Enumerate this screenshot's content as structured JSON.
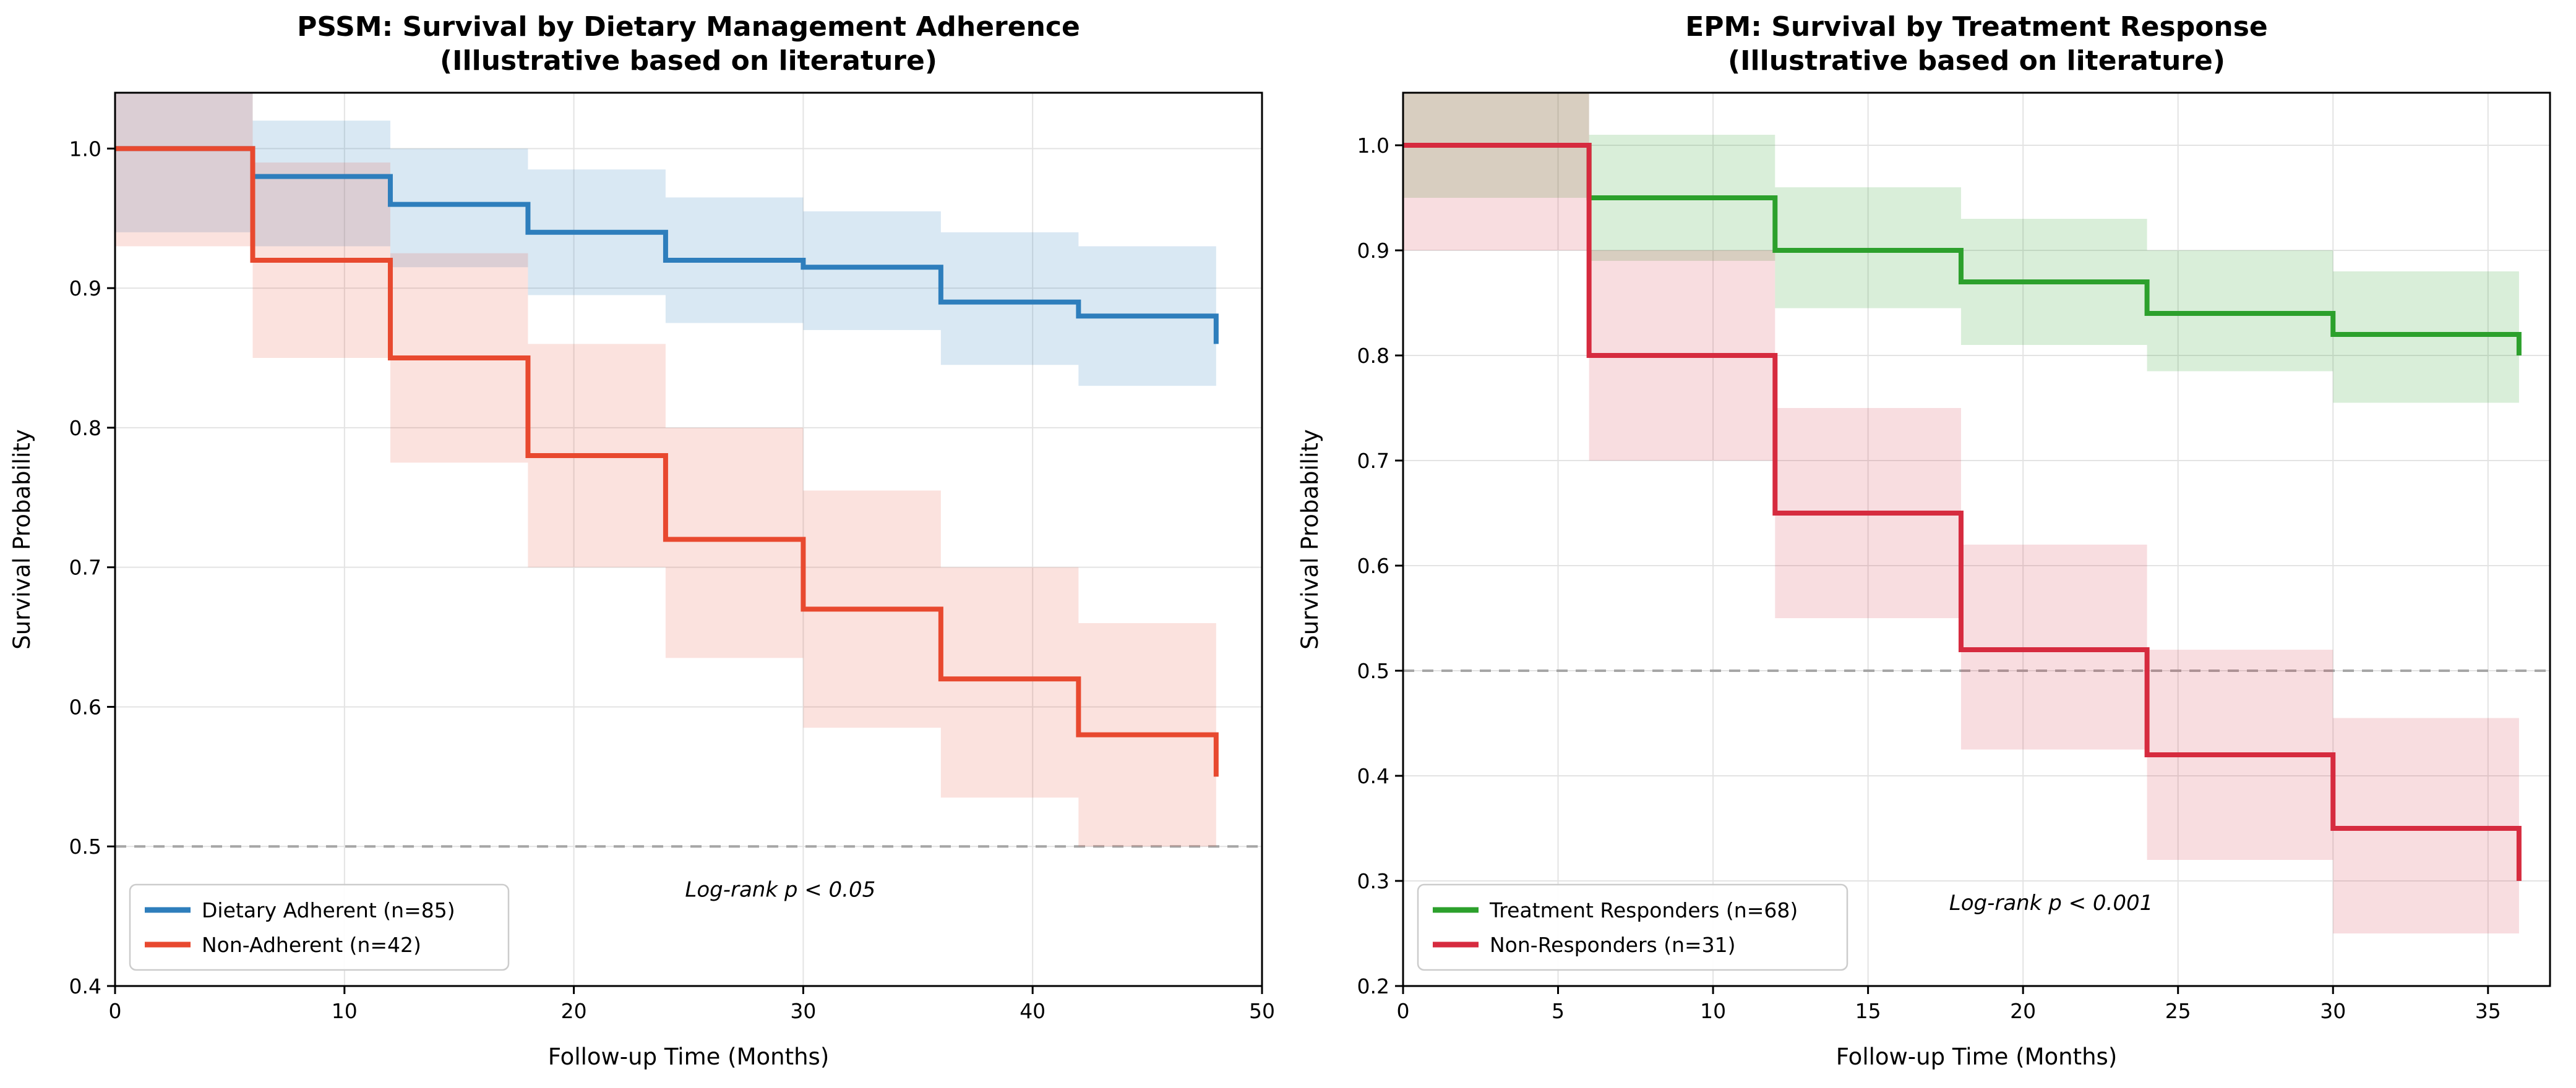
{
  "figure": {
    "background": "#ffffff",
    "grid_color": "#e3e3e3",
    "spine_color": "#000000"
  },
  "chart_data": [
    {
      "type": "line",
      "subtype": "kaplan-meier-step",
      "title": "PSSM: Survival by Dietary Management Adherence",
      "subtitle": "(Illustrative based on literature)",
      "xlabel": "Follow-up Time (Months)",
      "ylabel": "Survival Probability",
      "xlim": [
        0,
        50
      ],
      "ylim": [
        0.4,
        1.04
      ],
      "xticks": [
        0,
        10,
        20,
        30,
        40,
        50
      ],
      "xtick_labels": [
        "0",
        "10",
        "20",
        "30",
        "40",
        "50"
      ],
      "yticks": [
        0.4,
        0.5,
        0.6,
        0.7,
        0.8,
        0.9,
        1.0
      ],
      "ytick_labels": [
        "0.4",
        "0.5",
        "0.6",
        "0.7",
        "0.8",
        "0.9",
        "1.0"
      ],
      "grid": true,
      "legend_position": "lower-left",
      "reference_line": {
        "y": 0.5,
        "style": "dashed",
        "color": "#a6a6a6"
      },
      "annotation": {
        "text": "Log-rank p < 0.05",
        "fx": 0.58,
        "fy": 0.1
      },
      "series": [
        {
          "name": "Dietary Adherent (n=85)",
          "color": "#2e7ebc",
          "band_opacity": 0.18,
          "x": [
            0,
            6,
            12,
            18,
            24,
            30,
            36,
            42,
            48
          ],
          "y": [
            1.0,
            0.98,
            0.96,
            0.94,
            0.92,
            0.915,
            0.89,
            0.88,
            0.86
          ],
          "ci_upper": [
            1.05,
            1.02,
            1.0,
            0.985,
            0.965,
            0.955,
            0.94,
            0.93,
            0.93
          ],
          "ci_lower": [
            0.94,
            0.93,
            0.915,
            0.895,
            0.875,
            0.87,
            0.845,
            0.83,
            0.81
          ]
        },
        {
          "name": "Non-Adherent (n=42)",
          "color": "#e8492f",
          "band_opacity": 0.16,
          "x": [
            0,
            6,
            12,
            18,
            24,
            30,
            36,
            42,
            48
          ],
          "y": [
            1.0,
            0.92,
            0.85,
            0.78,
            0.72,
            0.67,
            0.62,
            0.58,
            0.55
          ],
          "ci_upper": [
            1.05,
            0.99,
            0.925,
            0.86,
            0.8,
            0.755,
            0.7,
            0.66,
            0.66
          ],
          "ci_lower": [
            0.93,
            0.85,
            0.775,
            0.7,
            0.635,
            0.585,
            0.535,
            0.5,
            0.465
          ]
        }
      ]
    },
    {
      "type": "line",
      "subtype": "kaplan-meier-step",
      "title": "EPM: Survival by Treatment Response",
      "subtitle": "(Illustrative based on literature)",
      "xlabel": "Follow-up Time (Months)",
      "ylabel": "Survival Probability",
      "xlim": [
        0,
        37
      ],
      "ylim": [
        0.2,
        1.05
      ],
      "xticks": [
        0,
        5,
        10,
        15,
        20,
        25,
        30,
        35
      ],
      "xtick_labels": [
        "0",
        "5",
        "10",
        "15",
        "20",
        "25",
        "30",
        "35"
      ],
      "yticks": [
        0.2,
        0.3,
        0.4,
        0.5,
        0.6,
        0.7,
        0.8,
        0.9,
        1.0
      ],
      "ytick_labels": [
        "0.2",
        "0.3",
        "0.4",
        "0.5",
        "0.6",
        "0.7",
        "0.8",
        "0.9",
        "1.0"
      ],
      "grid": true,
      "legend_position": "lower-left",
      "reference_line": {
        "y": 0.5,
        "style": "dashed",
        "color": "#a6a6a6"
      },
      "annotation": {
        "text": "Log-rank p < 0.001",
        "fx": 0.565,
        "fy": 0.085
      },
      "series": [
        {
          "name": "Treatment Responders (n=68)",
          "color": "#2ca02c",
          "band_opacity": 0.18,
          "x": [
            0,
            6,
            12,
            18,
            24,
            30,
            36
          ],
          "y": [
            1.0,
            0.95,
            0.9,
            0.87,
            0.84,
            0.82,
            0.8
          ],
          "ci_upper": [
            1.06,
            1.01,
            0.96,
            0.93,
            0.9,
            0.88,
            0.88
          ],
          "ci_lower": [
            0.95,
            0.89,
            0.845,
            0.81,
            0.785,
            0.755,
            0.74
          ]
        },
        {
          "name": "Non-Responders (n=31)",
          "color": "#d62b3f",
          "band_opacity": 0.16,
          "x": [
            0,
            6,
            12,
            18,
            24,
            30,
            36
          ],
          "y": [
            1.0,
            0.8,
            0.65,
            0.52,
            0.42,
            0.35,
            0.3
          ],
          "ci_upper": [
            1.06,
            0.9,
            0.75,
            0.62,
            0.52,
            0.455,
            0.45
          ],
          "ci_lower": [
            0.9,
            0.7,
            0.55,
            0.425,
            0.32,
            0.25,
            0.25
          ]
        }
      ]
    }
  ]
}
